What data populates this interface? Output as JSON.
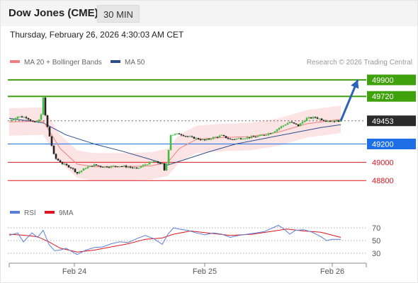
{
  "header": {
    "title": "Dow Jones (CME)",
    "timeframe": "30 MIN",
    "datetime": "Thursday, February 26, 2026 4:30:03 AM CET"
  },
  "legend": {
    "ma20_bb_label": "MA 20 + Bollinger Bands",
    "ma50_label": "MA 50",
    "ma20_color": "#f08080",
    "ma50_color": "#2b4f8c",
    "credit": "Research © 2026 Trading Central"
  },
  "rsi_legend": {
    "rsi_label": "RSI",
    "ma9_label": "9MA",
    "rsi_color": "#5b7fd6",
    "ma9_color": "#e0141e"
  },
  "chart_data": {
    "type": "candlestick",
    "price_axis": {
      "ylim": [
        48740,
        50000
      ]
    },
    "levels": [
      {
        "value": 49900,
        "label": "49900",
        "kind": "target",
        "color": "#3fa10c"
      },
      {
        "value": 49720,
        "label": "49720",
        "kind": "target",
        "color": "#3fa10c"
      },
      {
        "value": 49453,
        "label": "49453",
        "kind": "current",
        "color": "#2b2b2b"
      },
      {
        "value": 49200,
        "label": "49200",
        "kind": "pivot",
        "color": "#1e6fe6"
      },
      {
        "value": 49000,
        "label": "49000",
        "kind": "support",
        "color": "#e0141e"
      },
      {
        "value": 48800,
        "label": "48800",
        "kind": "support",
        "color": "#e0141e"
      }
    ],
    "price_path": [
      [
        0,
        49450
      ],
      [
        3,
        49500
      ],
      [
        6,
        49490
      ],
      [
        9,
        49430
      ],
      [
        11,
        49470
      ],
      [
        12,
        49700
      ],
      [
        13,
        49450
      ],
      [
        16,
        49050
      ],
      [
        19,
        48980
      ],
      [
        22,
        48940
      ],
      [
        24,
        48880
      ],
      [
        27,
        48940
      ],
      [
        30,
        48970
      ],
      [
        33,
        48950
      ],
      [
        36,
        48955
      ],
      [
        39,
        48960
      ],
      [
        42,
        48950
      ],
      [
        45,
        48930
      ],
      [
        48,
        48975
      ],
      [
        51,
        49010
      ],
      [
        54,
        48980
      ],
      [
        55,
        48880
      ],
      [
        57,
        49300
      ],
      [
        60,
        49310
      ],
      [
        63,
        49280
      ],
      [
        66,
        49260
      ],
      [
        69,
        49240
      ],
      [
        72,
        49270
      ],
      [
        75,
        49290
      ],
      [
        78,
        49250
      ],
      [
        81,
        49260
      ],
      [
        84,
        49270
      ],
      [
        87,
        49280
      ],
      [
        90,
        49300
      ],
      [
        93,
        49330
      ],
      [
        96,
        49390
      ],
      [
        99,
        49440
      ],
      [
        102,
        49400
      ],
      [
        105,
        49480
      ],
      [
        108,
        49490
      ],
      [
        111,
        49460
      ],
      [
        114,
        49450
      ],
      [
        117,
        49453
      ]
    ],
    "ma20_path": [
      [
        0,
        49440
      ],
      [
        12,
        49450
      ],
      [
        18,
        49150
      ],
      [
        24,
        48980
      ],
      [
        30,
        48950
      ],
      [
        40,
        48950
      ],
      [
        50,
        48960
      ],
      [
        56,
        49000
      ],
      [
        60,
        49150
      ],
      [
        66,
        49250
      ],
      [
        75,
        49270
      ],
      [
        85,
        49280
      ],
      [
        95,
        49330
      ],
      [
        105,
        49420
      ],
      [
        117,
        49470
      ]
    ],
    "ma50_path": [
      [
        0,
        49480
      ],
      [
        12,
        49430
      ],
      [
        20,
        49300
      ],
      [
        30,
        49200
      ],
      [
        40,
        49120
      ],
      [
        50,
        49030
      ],
      [
        56,
        48970
      ],
      [
        62,
        49030
      ],
      [
        70,
        49110
      ],
      [
        80,
        49200
      ],
      [
        90,
        49260
      ],
      [
        100,
        49320
      ],
      [
        110,
        49380
      ],
      [
        117,
        49410
      ]
    ],
    "forecast_arrow": {
      "from": [
        117,
        49453
      ],
      "to": [
        123,
        49900
      ]
    },
    "rsi": {
      "ylim": [
        20,
        80
      ],
      "ticks": [
        70,
        50,
        30
      ],
      "rsi_path": [
        [
          0,
          58
        ],
        [
          3,
          62
        ],
        [
          5,
          48
        ],
        [
          8,
          62
        ],
        [
          10,
          55
        ],
        [
          12,
          66
        ],
        [
          14,
          44
        ],
        [
          16,
          34
        ],
        [
          18,
          35
        ],
        [
          20,
          38
        ],
        [
          22,
          33
        ],
        [
          24,
          28
        ],
        [
          27,
          35
        ],
        [
          30,
          39
        ],
        [
          33,
          40
        ],
        [
          36,
          45
        ],
        [
          39,
          48
        ],
        [
          42,
          47
        ],
        [
          45,
          53
        ],
        [
          48,
          58
        ],
        [
          51,
          53
        ],
        [
          54,
          44
        ],
        [
          56,
          60
        ],
        [
          58,
          70
        ],
        [
          60,
          68
        ],
        [
          63,
          66
        ],
        [
          66,
          62
        ],
        [
          69,
          59
        ],
        [
          72,
          62
        ],
        [
          75,
          60
        ],
        [
          78,
          55
        ],
        [
          81,
          58
        ],
        [
          84,
          60
        ],
        [
          87,
          62
        ],
        [
          90,
          64
        ],
        [
          93,
          70
        ],
        [
          95,
          74
        ],
        [
          97,
          68
        ],
        [
          99,
          60
        ],
        [
          101,
          66
        ],
        [
          104,
          67
        ],
        [
          107,
          63
        ],
        [
          110,
          56
        ],
        [
          112,
          50
        ],
        [
          114,
          52
        ],
        [
          117,
          52
        ]
      ],
      "ma9_path": [
        [
          0,
          60
        ],
        [
          6,
          58
        ],
        [
          10,
          56
        ],
        [
          14,
          48
        ],
        [
          18,
          38
        ],
        [
          24,
          32
        ],
        [
          30,
          35
        ],
        [
          36,
          40
        ],
        [
          42,
          45
        ],
        [
          48,
          52
        ],
        [
          54,
          54
        ],
        [
          58,
          60
        ],
        [
          64,
          65
        ],
        [
          70,
          62
        ],
        [
          78,
          58
        ],
        [
          86,
          60
        ],
        [
          92,
          64
        ],
        [
          98,
          68
        ],
        [
          104,
          65
        ],
        [
          110,
          63
        ],
        [
          117,
          55
        ]
      ]
    },
    "x_axis": {
      "range": [
        0,
        126
      ],
      "ticks": [
        {
          "x": 23,
          "label": "Feb 24"
        },
        {
          "x": 69,
          "label": "Feb 25"
        },
        {
          "x": 114,
          "label": "Feb 26"
        }
      ]
    }
  }
}
